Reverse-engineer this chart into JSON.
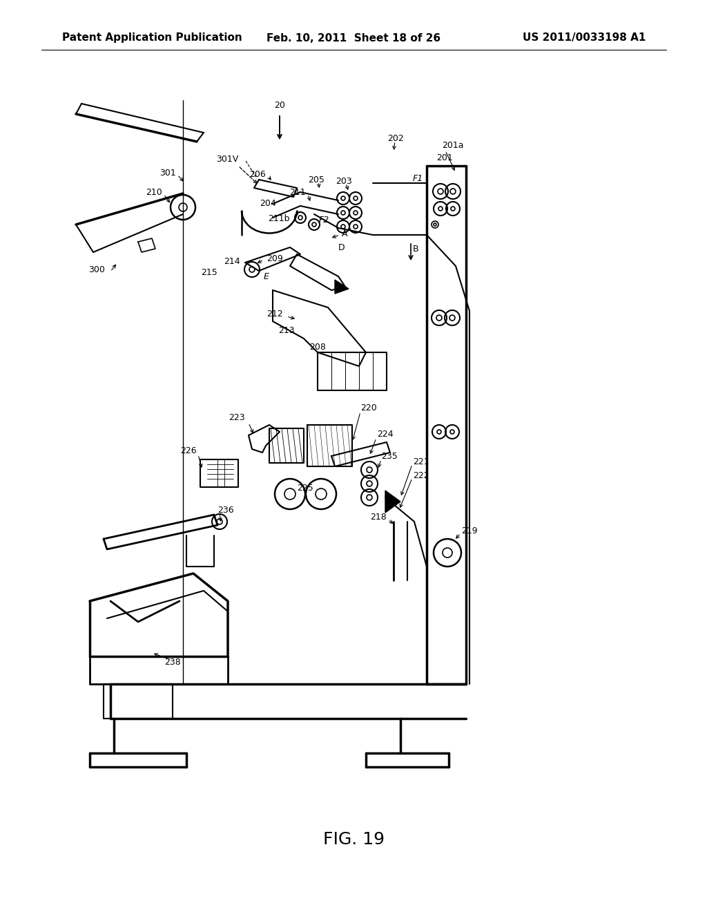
{
  "title": "FIG. 19",
  "header_left": "Patent Application Publication",
  "header_center": "Feb. 10, 2011  Sheet 18 of 26",
  "header_right": "US 2011/0033198 A1",
  "background_color": "#ffffff",
  "fig_width": 10.24,
  "fig_height": 13.2,
  "dpi": 100
}
